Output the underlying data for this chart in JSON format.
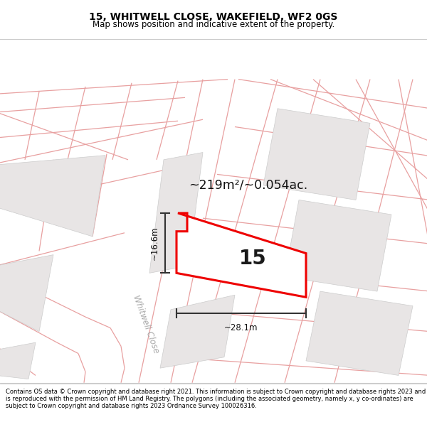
{
  "title": "15, WHITWELL CLOSE, WAKEFIELD, WF2 0GS",
  "subtitle": "Map shows position and indicative extent of the property.",
  "footer": "Contains OS data © Crown copyright and database right 2021. This information is subject to Crown copyright and database rights 2023 and is reproduced with the permission of HM Land Registry. The polygons (including the associated geometry, namely x, y co-ordinates) are subject to Crown copyright and database rights 2023 Ordnance Survey 100026316.",
  "area_label": "~219m²/~0.054ac.",
  "width_label": "~28.1m",
  "height_label": "~16.6m",
  "number_label": "15",
  "map_bg": "#f7f5f5",
  "building_color": "#e8e5e5",
  "building_edge": "#cccccc",
  "red_line_color": "#ee0000",
  "dim_line_color": "#333333",
  "road_outline_color": "#e8a0a0",
  "street_label": "Whitwell Close",
  "title_fontsize": 10,
  "subtitle_fontsize": 8.5,
  "footer_fontsize": 6.0
}
